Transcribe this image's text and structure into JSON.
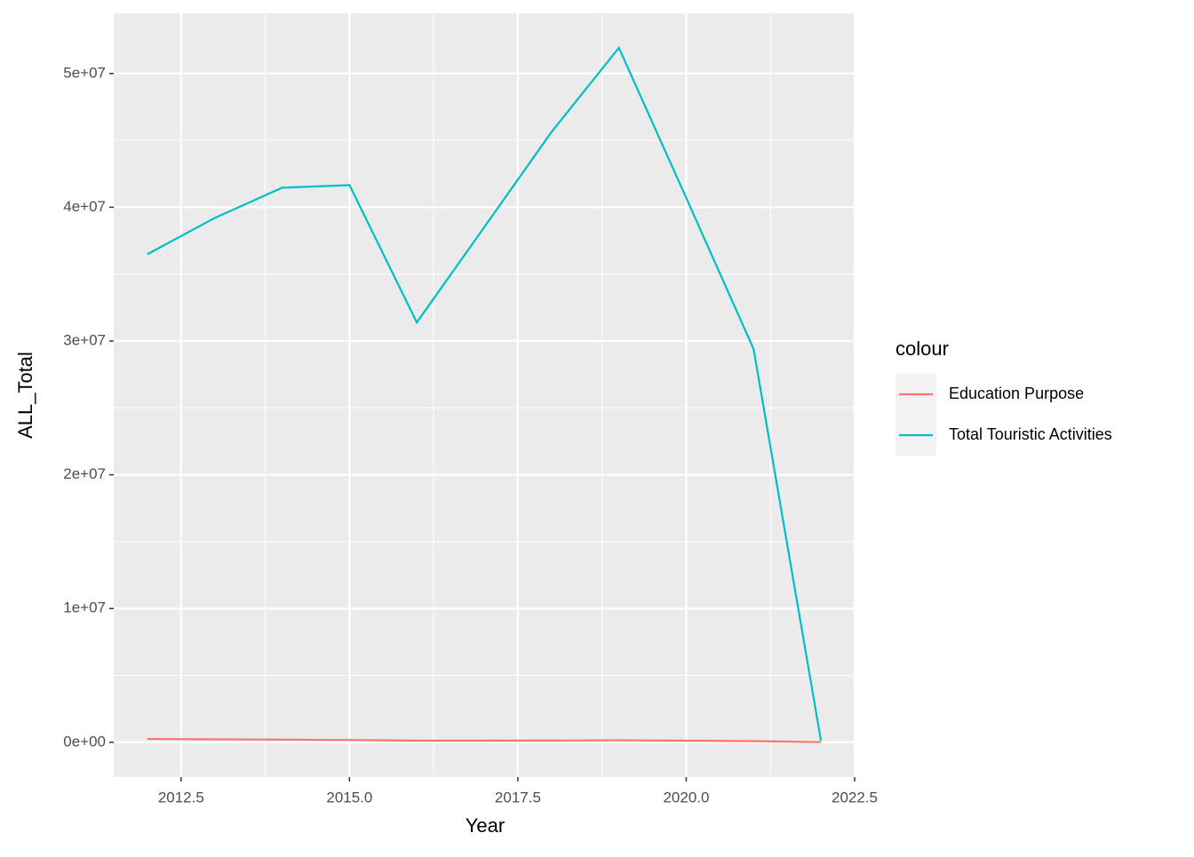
{
  "chart_data": {
    "type": "line",
    "x_label": "Year",
    "y_label": "ALL_Total",
    "legend_title": "colour",
    "x": [
      2012,
      2013,
      2014,
      2015,
      2016,
      2017,
      2018,
      2019,
      2020,
      2021,
      2022
    ],
    "series": [
      {
        "name": "Education Purpose",
        "color": "#f8766d",
        "values": [
          250000,
          220000,
          200000,
          170000,
          120000,
          120000,
          130000,
          150000,
          120000,
          90000,
          10000
        ]
      },
      {
        "name": "Total Touristic Activities",
        "color": "#00bfc4",
        "values": [
          36490000,
          39200000,
          41460000,
          41660000,
          31390000,
          38500000,
          45630000,
          51920000,
          40700000,
          29400000,
          130000
        ]
      }
    ],
    "xlim": [
      2011.5,
      2022.5
    ],
    "xticks": [
      2012.5,
      {
        "value": 2015,
        "label": "2015.0"
      },
      2017.5,
      {
        "value": 2020,
        "label": "2020.0"
      },
      2022.5
    ],
    "ylim": [
      -2600000,
      54500000
    ],
    "yticks": [
      {
        "value": 0,
        "label": "0e+00"
      },
      {
        "value": 10000000,
        "label": "1e+07"
      },
      {
        "value": 20000000,
        "label": "2e+07"
      },
      {
        "value": 30000000,
        "label": "3e+07"
      },
      {
        "value": 40000000,
        "label": "4e+07"
      },
      {
        "value": 50000000,
        "label": "5e+07"
      }
    ],
    "grid": true,
    "legend_position": "right"
  }
}
